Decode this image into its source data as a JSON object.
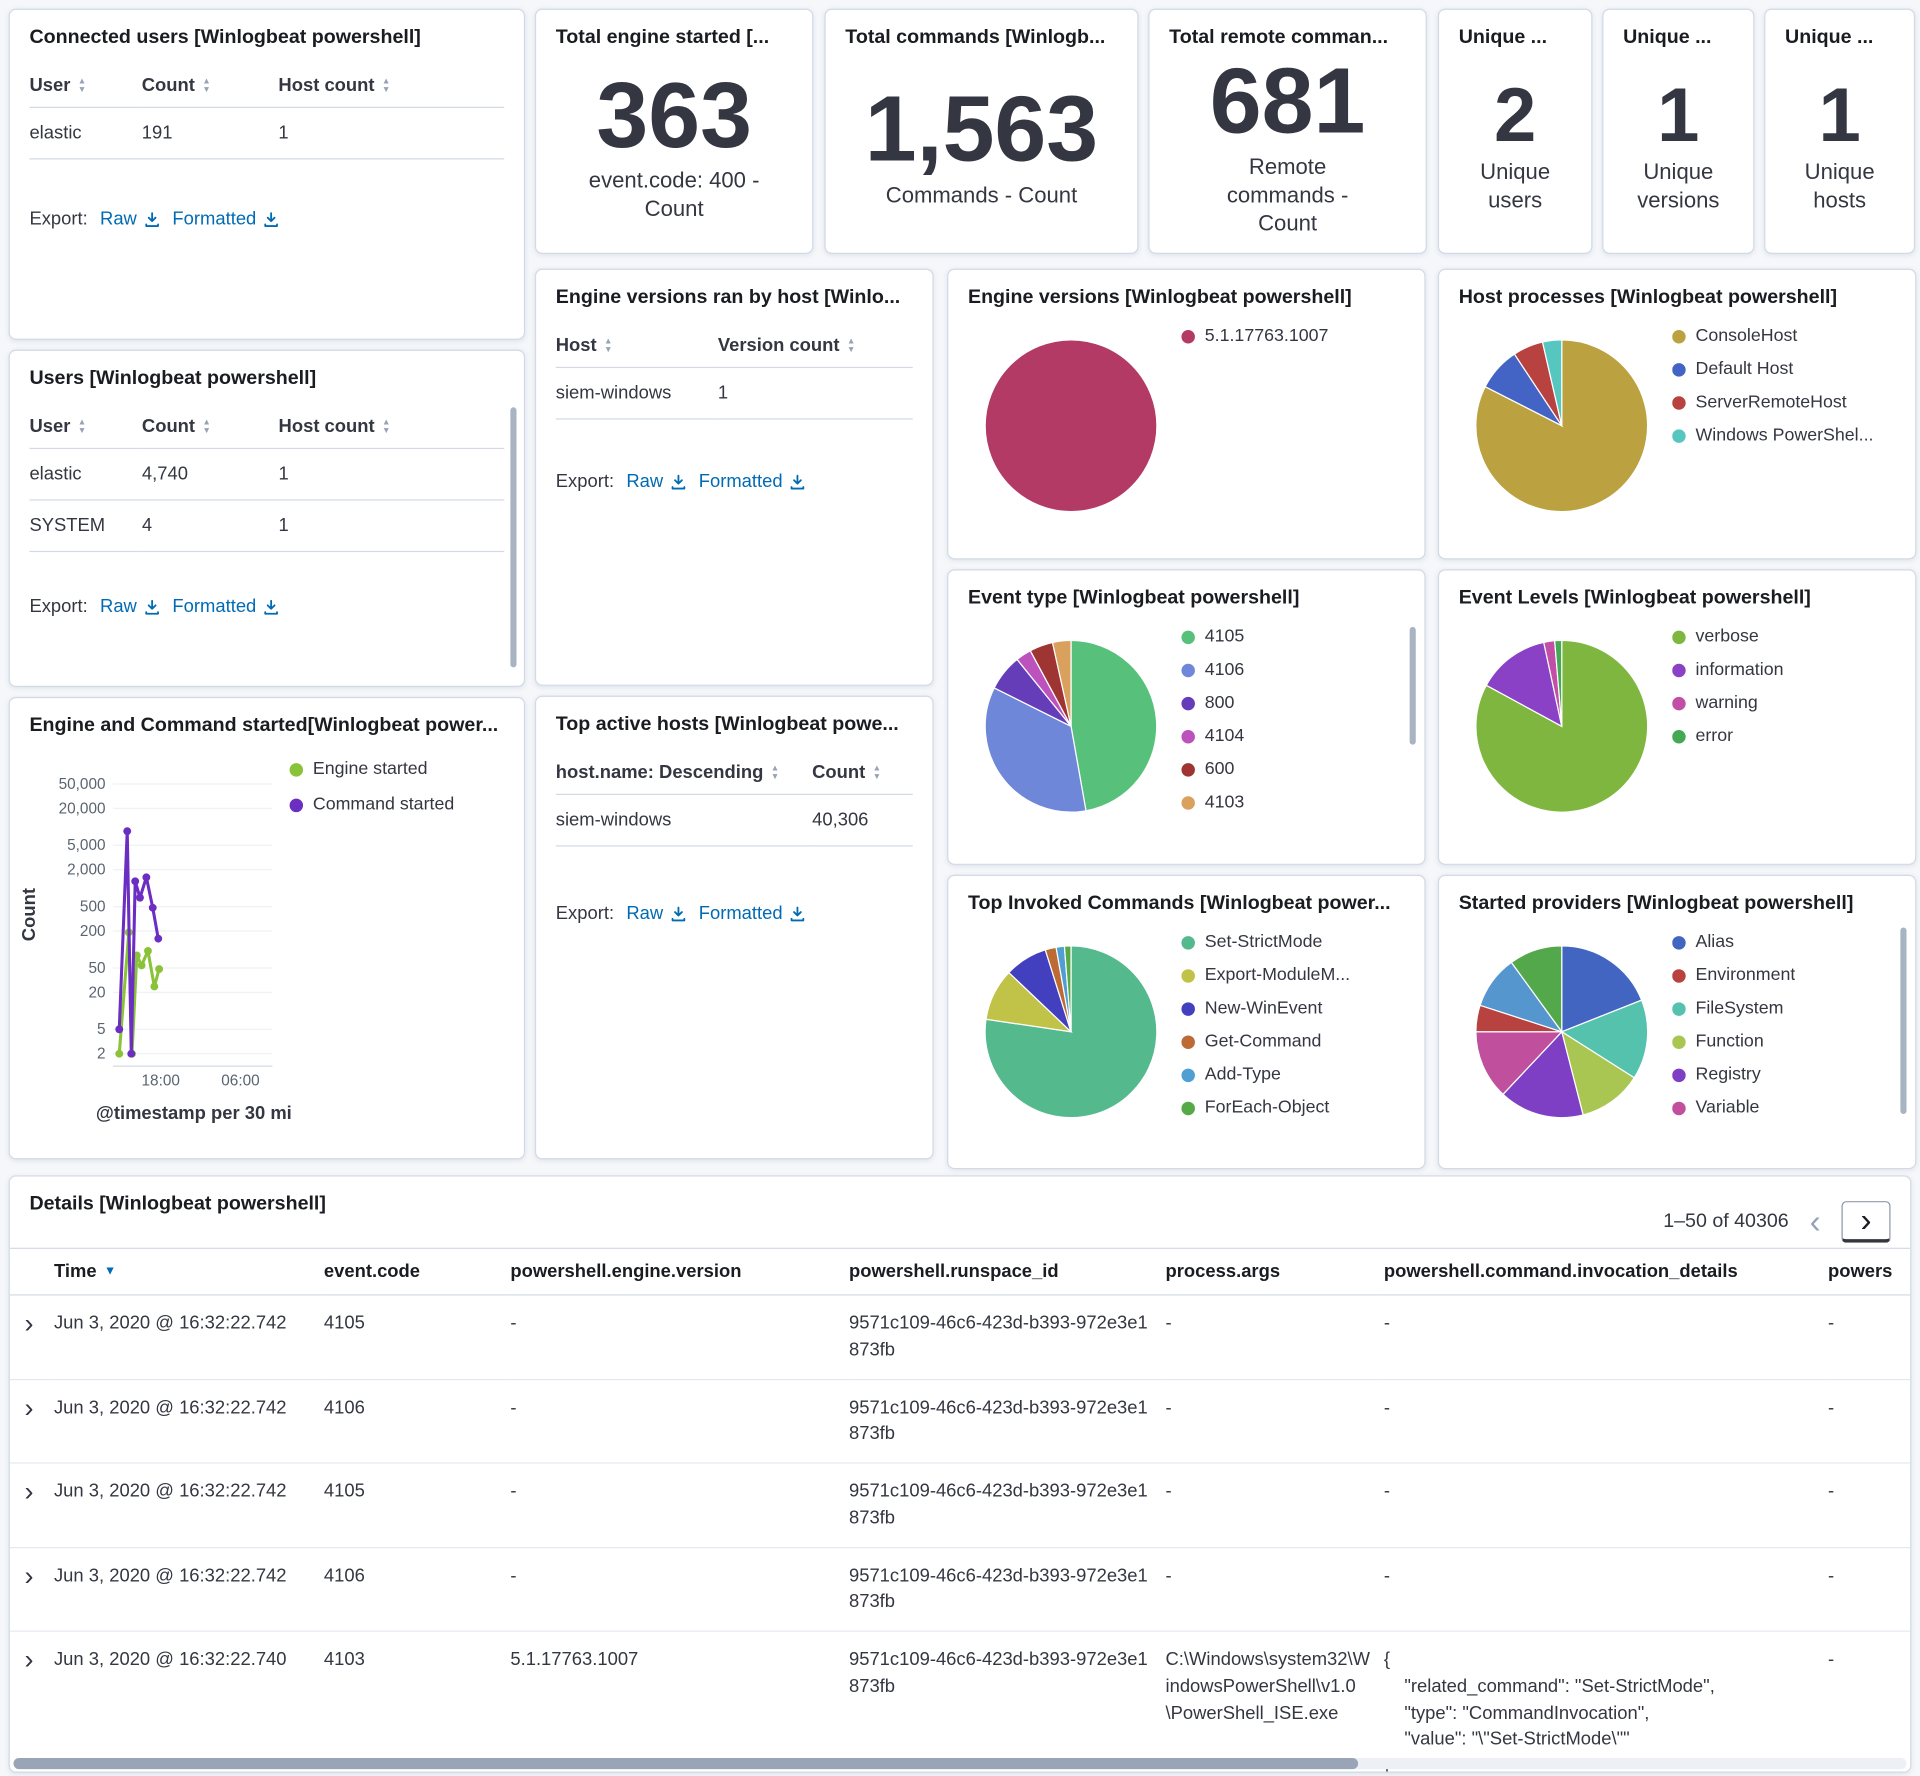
{
  "export_common": {
    "label": "Export:",
    "raw": "Raw",
    "formatted": "Formatted"
  },
  "panels": {
    "connected_users": {
      "title": "Connected users [Winlogbeat powershell]",
      "columns": [
        "User",
        "Count",
        "Host count"
      ],
      "rows": [
        [
          "elastic",
          "191",
          "1"
        ]
      ]
    },
    "users": {
      "title": "Users [Winlogbeat powershell]",
      "columns": [
        "User",
        "Count",
        "Host count"
      ],
      "rows": [
        [
          "elastic",
          "4,740",
          "1"
        ],
        [
          "SYSTEM",
          "4",
          "1"
        ]
      ]
    },
    "total_engine_started": {
      "title": "Total engine started [...",
      "value": "363",
      "label": "event.code: 400 - Count"
    },
    "total_commands": {
      "title": "Total commands [Winlogb...",
      "value": "1,563",
      "label": "Commands - Count"
    },
    "total_remote_commands": {
      "title": "Total remote comman...",
      "value": "681",
      "label": "Remote commands - Count"
    },
    "unique_users": {
      "title": "Unique ...",
      "value": "2",
      "label": "Unique users"
    },
    "unique_versions": {
      "title": "Unique ...",
      "value": "1",
      "label": "Unique versions"
    },
    "unique_hosts": {
      "title": "Unique ...",
      "value": "1",
      "label": "Unique hosts"
    },
    "engine_versions_by_host": {
      "title": "Engine versions ran by host [Winlo...",
      "columns": [
        "Host",
        "Version count"
      ],
      "rows": [
        [
          "siem-windows",
          "1"
        ]
      ]
    },
    "top_active_hosts": {
      "title": "Top active hosts [Winlogbeat powe...",
      "columns": [
        "host.name: Descending",
        "Count"
      ],
      "rows": [
        [
          "siem-windows",
          "40,306"
        ]
      ]
    }
  },
  "chart_data": [
    {
      "type": "line",
      "title": "Engine and Command started[Winlogbeat power...",
      "ylabel": "Count",
      "xlabel": "@timestamp per 30 mi",
      "y_scale": "log",
      "grid": true,
      "legend_position": "right",
      "y_ticks": [
        50000,
        20000,
        5000,
        2000,
        500,
        200,
        50,
        20,
        5,
        2
      ],
      "y_tick_labels": [
        "50,000",
        "20,000",
        "5,000",
        "2,000",
        "500",
        "200",
        "50",
        "20",
        "5",
        "2"
      ],
      "x_ticks": [
        {
          "label": "18:00",
          "f": 0.3
        },
        {
          "label": "06:00",
          "f": 0.8
        }
      ],
      "series": [
        {
          "name": "Engine started",
          "color": "#8ac339",
          "points": [
            [
              0.04,
              2
            ],
            [
              0.1,
              190
            ],
            [
              0.12,
              2
            ],
            [
              0.15,
              80
            ],
            [
              0.18,
              55
            ],
            [
              0.22,
              95
            ],
            [
              0.26,
              25
            ],
            [
              0.29,
              48
            ]
          ]
        },
        {
          "name": "Command started",
          "color": "#6c2dc2",
          "points": [
            [
              0.04,
              5
            ],
            [
              0.09,
              8500
            ],
            [
              0.115,
              2
            ],
            [
              0.14,
              1300
            ],
            [
              0.17,
              700
            ],
            [
              0.21,
              1500
            ],
            [
              0.25,
              480
            ],
            [
              0.285,
              150
            ]
          ]
        }
      ]
    },
    {
      "type": "pie",
      "title": "Engine versions [Winlogbeat powershell]",
      "slices": [
        {
          "label": "5.1.17763.1007",
          "value": 1,
          "color": "#b43a66"
        }
      ]
    },
    {
      "type": "pie",
      "title": "Host processes [Winlogbeat powershell]",
      "slices": [
        {
          "label": "ConsoleHost",
          "value": 0.825,
          "color": "#bba13f"
        },
        {
          "label": "Default Host",
          "value": 0.082,
          "color": "#4464c5"
        },
        {
          "label": "ServerRemoteHost",
          "value": 0.057,
          "color": "#b8423f"
        },
        {
          "label": "Windows PowerShel...",
          "value": 0.036,
          "color": "#56c6c0"
        }
      ]
    },
    {
      "type": "pie",
      "title": "Event type [Winlogbeat powershell]",
      "slices": [
        {
          "label": "4105",
          "value": 0.45,
          "color": "#57c17b"
        },
        {
          "label": "4106",
          "value": 0.335,
          "color": "#6f87d8"
        },
        {
          "label": "800",
          "value": 0.065,
          "color": "#663db8"
        },
        {
          "label": "4104",
          "value": 0.028,
          "color": "#bc52bc"
        },
        {
          "label": "600",
          "value": 0.042,
          "color": "#9e3533"
        },
        {
          "label": "4103",
          "value": 0.033,
          "color": "#daa05d"
        }
      ]
    },
    {
      "type": "pie",
      "title": "Event Levels [Winlogbeat powershell]",
      "slices": [
        {
          "label": "verbose",
          "value": 0.815,
          "color": "#7eb63f"
        },
        {
          "label": "information",
          "value": 0.135,
          "color": "#8a41c6"
        },
        {
          "label": "warning",
          "value": 0.02,
          "color": "#c24fa7"
        },
        {
          "label": "error",
          "value": 0.013,
          "color": "#45a853"
        }
      ]
    },
    {
      "type": "pie",
      "title": "Top Invoked Commands [Winlogbeat power...",
      "slices": [
        {
          "label": "Set-StrictMode",
          "value": 0.75,
          "color": "#54b98c"
        },
        {
          "label": "Export-ModuleM...",
          "value": 0.095,
          "color": "#c1c348"
        },
        {
          "label": "New-WinEvent",
          "value": 0.078,
          "color": "#4340c0"
        },
        {
          "label": "Get-Command",
          "value": 0.02,
          "color": "#bd6b35"
        },
        {
          "label": "Add-Type",
          "value": 0.015,
          "color": "#4f9fd4"
        },
        {
          "label": "ForEach-Object",
          "value": 0.012,
          "color": "#55aa47"
        }
      ]
    },
    {
      "type": "pie",
      "title": "Started providers [Winlogbeat powershell]",
      "slices": [
        {
          "label": "Alias",
          "value": 0.19,
          "color": "#4165c0"
        },
        {
          "label": "FileSystem",
          "value": 0.15,
          "color": "#55c2ae"
        },
        {
          "label": "Function",
          "value": 0.12,
          "color": "#a9c652"
        },
        {
          "label": "Registry",
          "value": 0.16,
          "color": "#7e3fc4"
        },
        {
          "label": "Variable",
          "value": 0.13,
          "color": "#c04f9e"
        },
        {
          "label": "Environment",
          "value": 0.05,
          "color": "#b8423f"
        },
        {
          "label": "",
          "value": 0.1,
          "color": "#5596cf"
        },
        {
          "label": "",
          "value": 0.1,
          "color": "#54a84c"
        }
      ],
      "legend": [
        {
          "label": "Alias",
          "color": "#4165c0"
        },
        {
          "label": "Environment",
          "color": "#b8423f"
        },
        {
          "label": "FileSystem",
          "color": "#55c2ae"
        },
        {
          "label": "Function",
          "color": "#a9c652"
        },
        {
          "label": "Registry",
          "color": "#7e3fc4"
        },
        {
          "label": "Variable",
          "color": "#c04f9e"
        }
      ]
    }
  ],
  "details": {
    "title": "Details [Winlogbeat powershell]",
    "pagination": {
      "range": "1–50 of 40306"
    },
    "columns": [
      "Time",
      "event.code",
      "powershell.engine.version",
      "powershell.runspace_id",
      "process.args",
      "powershell.command.invocation_details",
      "powers"
    ],
    "rows": [
      {
        "time": "Jun 3, 2020 @ 16:32:22.742",
        "event_code": "4105",
        "engine_version": "-",
        "runspace_id": "9571c109-46c6-423d-b393-972e3e1873fb",
        "process_args": "-",
        "invocation_details": "-",
        "last": "-"
      },
      {
        "time": "Jun 3, 2020 @ 16:32:22.742",
        "event_code": "4106",
        "engine_version": "-",
        "runspace_id": "9571c109-46c6-423d-b393-972e3e1873fb",
        "process_args": "-",
        "invocation_details": "-",
        "last": "-"
      },
      {
        "time": "Jun 3, 2020 @ 16:32:22.742",
        "event_code": "4105",
        "engine_version": "-",
        "runspace_id": "9571c109-46c6-423d-b393-972e3e1873fb",
        "process_args": "-",
        "invocation_details": "-",
        "last": "-"
      },
      {
        "time": "Jun 3, 2020 @ 16:32:22.742",
        "event_code": "4106",
        "engine_version": "-",
        "runspace_id": "9571c109-46c6-423d-b393-972e3e1873fb",
        "process_args": "-",
        "invocation_details": "-",
        "last": "-"
      },
      {
        "time": "Jun 3, 2020 @ 16:32:22.740",
        "event_code": "4103",
        "engine_version": "5.1.17763.1007",
        "runspace_id": "9571c109-46c6-423d-b393-972e3e1873fb",
        "process_args": "C:\\Windows\\system32\\WindowsPowerShell\\v1.0\\PowerShell_ISE.exe",
        "invocation_details": "{\n    \"related_command\": \"Set-StrictMode\",\n    \"type\": \"CommandInvocation\",\n    \"value\": \"\\\"Set-StrictMode\\\"\"\n}",
        "last": "-"
      }
    ]
  }
}
